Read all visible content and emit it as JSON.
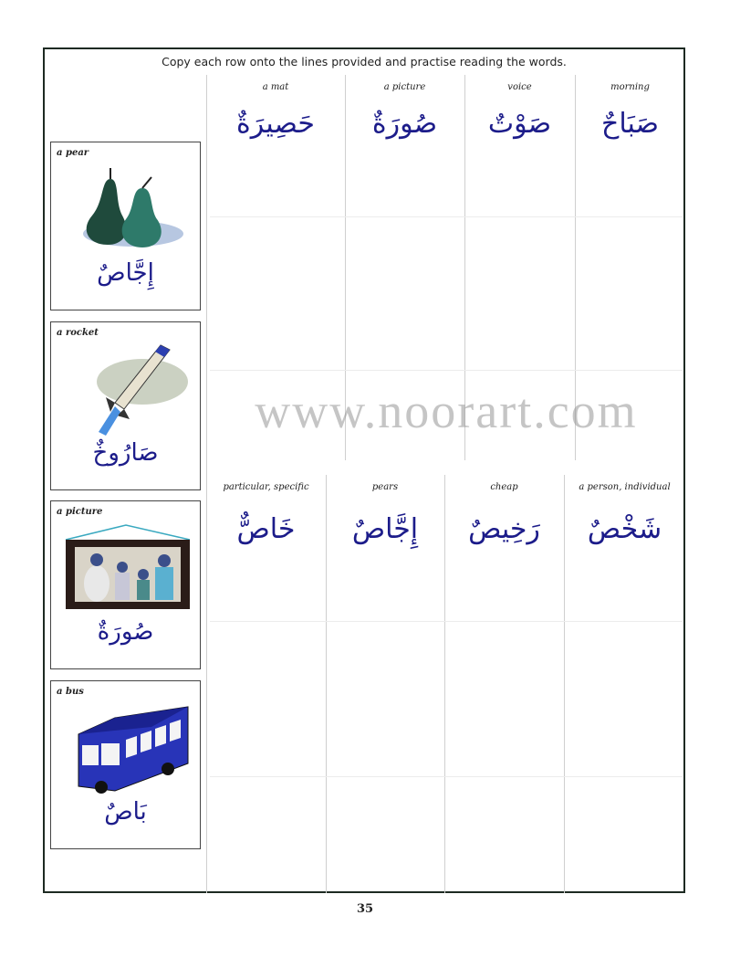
{
  "instruction": "Copy each row onto the lines provided and practise reading the words.",
  "top_row": [
    {
      "gloss": "a mat",
      "arabic": "حَصِيرَةٌ"
    },
    {
      "gloss": "a picture",
      "arabic": "صُورَةٌ"
    },
    {
      "gloss": "voice",
      "arabic": "صَوْتٌ"
    },
    {
      "gloss": "morning",
      "arabic": "صَبَاحٌ"
    }
  ],
  "bottom_row": [
    {
      "gloss": "particular, specific",
      "arabic": "خَاصٌّ"
    },
    {
      "gloss": "pears",
      "arabic": "إِجَّاصٌ"
    },
    {
      "gloss": "cheap",
      "arabic": "رَخِيصٌ"
    },
    {
      "gloss": "a person, individual",
      "arabic": "شَخْصٌ"
    }
  ],
  "cards": [
    {
      "caption": "a pear",
      "arabic": "إِجَّاصٌ",
      "icon": "pear-icon"
    },
    {
      "caption": "a rocket",
      "arabic": "صَارُوخٌ",
      "icon": "rocket-icon"
    },
    {
      "caption": "a picture",
      "arabic": "صُورَةٌ",
      "icon": "framed-picture-icon"
    },
    {
      "caption": "a bus",
      "arabic": "بَاصٌ",
      "icon": "bus-icon"
    }
  ],
  "watermark": "www.noorart.com",
  "page_number": "35",
  "colors": {
    "arabic_blue": "#1c1c8a",
    "arabic_red": "#c0281c",
    "frame": "#1d2a22"
  }
}
